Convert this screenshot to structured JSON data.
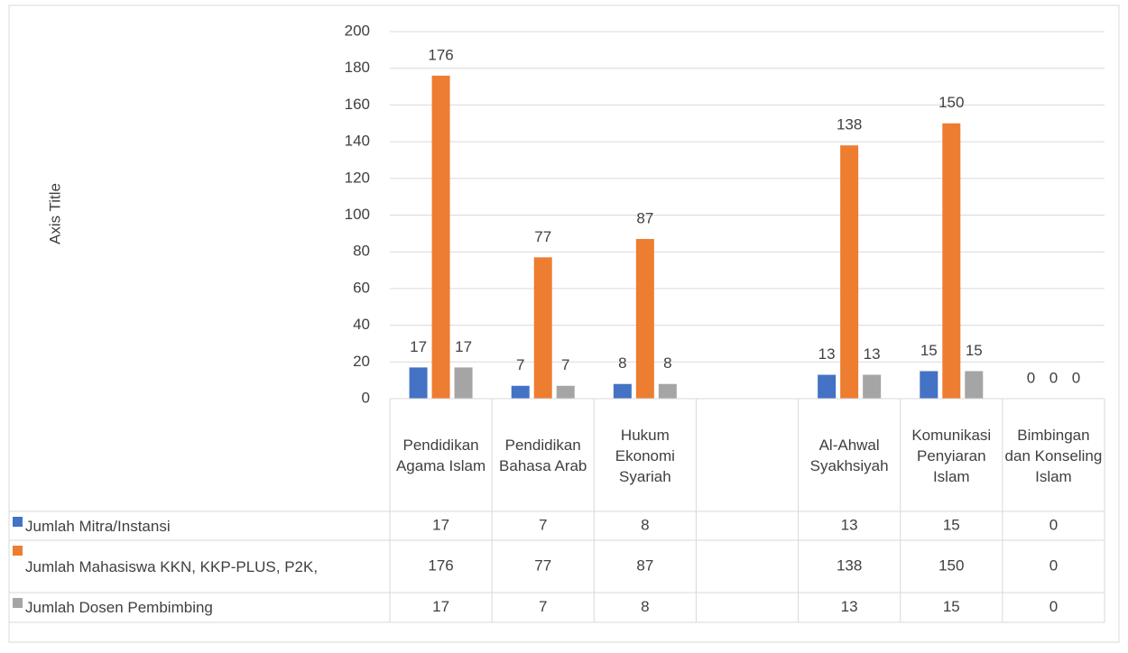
{
  "chart_data": {
    "type": "bar",
    "y_axis_title": "Axis Title",
    "categories": [
      "Pendidikan Agama Islam",
      "Pendidikan Bahasa Arab",
      "Hukum Ekonomi Syariah",
      null,
      "Al-Ahwal Syakhsiyah",
      "Komunikasi Penyiaran Islam",
      "Bimbingan dan Konseling Islam"
    ],
    "series": [
      {
        "name": "Jumlah Mitra/Instansi",
        "color": "#4472c4",
        "values": [
          17,
          7,
          8,
          null,
          13,
          15,
          0
        ]
      },
      {
        "name": "Jumlah Mahasiswa KKN, KKP-PLUS, P2K,",
        "color": "#ed7d31",
        "values": [
          176,
          77,
          87,
          null,
          138,
          150,
          0
        ]
      },
      {
        "name": "Jumlah Dosen Pembimbing",
        "color": "#a5a5a5",
        "values": [
          17,
          7,
          8,
          null,
          13,
          15,
          0
        ]
      }
    ],
    "ylim": [
      0,
      200
    ],
    "yticks": [
      0,
      20,
      40,
      60,
      80,
      100,
      120,
      140,
      160,
      180,
      200
    ],
    "grid": true,
    "data_table": true
  }
}
